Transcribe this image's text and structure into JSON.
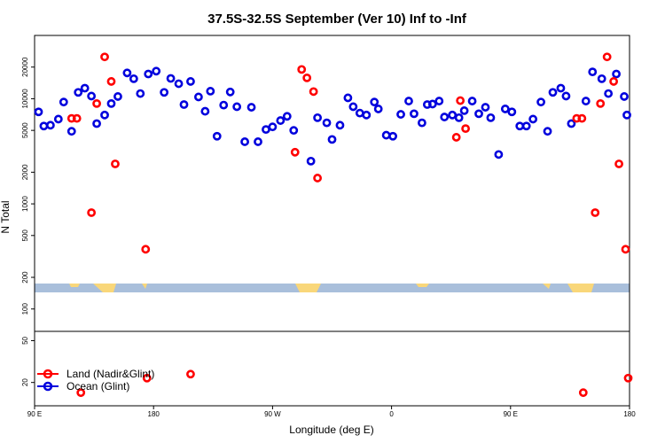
{
  "chart_data": {
    "type": "scatter",
    "title": "37.5S-32.5S September (Ver 10)   Inf to -Inf",
    "xlabel": "Longitude (deg E)",
    "ylabel": "N Total",
    "xlim": [
      90,
      540
    ],
    "ylim": [
      12,
      40000
    ],
    "y_scale": "log",
    "x_ticks": [
      {
        "value": 90,
        "label": "90 E"
      },
      {
        "value": 180,
        "label": "180"
      },
      {
        "value": 270,
        "label": "90 W"
      },
      {
        "value": 360,
        "label": "0"
      },
      {
        "value": 450,
        "label": "90 E"
      },
      {
        "value": 540,
        "label": "180"
      }
    ],
    "y_ticks": [
      20,
      50,
      100,
      200,
      500,
      1000,
      2000,
      5000,
      10000,
      20000
    ],
    "legend_position": "bottom-left",
    "colors": {
      "land": "#ff0000",
      "ocean": "#0000dd",
      "map_water": "#a9bfdb",
      "map_land": "#f9d77a"
    },
    "series": [
      {
        "name": "Land (Nadir&Glint)",
        "color": "#ff0000",
        "points": [
          [
            118,
            6500
          ],
          [
            122,
            6500
          ],
          [
            133,
            825
          ],
          [
            137,
            9000
          ],
          [
            143,
            25000
          ],
          [
            148,
            14600
          ],
          [
            151,
            2400
          ],
          [
            174,
            370
          ],
          [
            175,
            22
          ],
          [
            287,
            3100
          ],
          [
            292,
            19000
          ],
          [
            296,
            15800
          ],
          [
            301,
            11700
          ],
          [
            304,
            1760
          ],
          [
            409,
            4300
          ],
          [
            412,
            9600
          ],
          [
            416,
            5200
          ],
          [
            208,
            24
          ],
          [
            500,
            6500
          ],
          [
            504,
            6500
          ],
          [
            514,
            825
          ],
          [
            518,
            9000
          ],
          [
            523,
            25000
          ],
          [
            528,
            14600
          ],
          [
            532,
            2400
          ],
          [
            537,
            370
          ],
          [
            539,
            22
          ],
          [
            125,
            16
          ],
          [
            505,
            16
          ]
        ]
      },
      {
        "name": "Ocean (Glint)",
        "color": "#0000dd",
        "points": [
          [
            93,
            7500
          ],
          [
            97,
            5500
          ],
          [
            102,
            5600
          ],
          [
            108,
            6400
          ],
          [
            112,
            9300
          ],
          [
            118,
            4900
          ],
          [
            123,
            11500
          ],
          [
            128,
            12600
          ],
          [
            133,
            10600
          ],
          [
            137,
            5800
          ],
          [
            143,
            7000
          ],
          [
            148,
            9000
          ],
          [
            153,
            10500
          ],
          [
            160,
            17600
          ],
          [
            165,
            15500
          ],
          [
            170,
            11200
          ],
          [
            176,
            17200
          ],
          [
            182,
            18300
          ],
          [
            188,
            11500
          ],
          [
            193,
            15600
          ],
          [
            199,
            13900
          ],
          [
            203,
            8800
          ],
          [
            208,
            14600
          ],
          [
            214,
            10400
          ],
          [
            219,
            7600
          ],
          [
            223,
            11800
          ],
          [
            228,
            4400
          ],
          [
            233,
            8700
          ],
          [
            238,
            11600
          ],
          [
            243,
            8400
          ],
          [
            249,
            3900
          ],
          [
            254,
            8300
          ],
          [
            259,
            3900
          ],
          [
            265,
            5100
          ],
          [
            270,
            5400
          ],
          [
            276,
            6200
          ],
          [
            281,
            6800
          ],
          [
            286,
            5000
          ],
          [
            299,
            2550
          ],
          [
            304,
            6600
          ],
          [
            311,
            5900
          ],
          [
            315,
            4100
          ],
          [
            321,
            5600
          ],
          [
            327,
            10200
          ],
          [
            331,
            8400
          ],
          [
            336,
            7300
          ],
          [
            341,
            7000
          ],
          [
            347,
            9300
          ],
          [
            350,
            8000
          ],
          [
            356,
            4500
          ],
          [
            361,
            4400
          ],
          [
            367,
            7100
          ],
          [
            373,
            9500
          ],
          [
            377,
            7200
          ],
          [
            383,
            5900
          ],
          [
            387,
            8800
          ],
          [
            391,
            8900
          ],
          [
            396,
            9500
          ],
          [
            400,
            6700
          ],
          [
            406,
            7000
          ],
          [
            411,
            6600
          ],
          [
            415,
            7700
          ],
          [
            421,
            9500
          ],
          [
            426,
            7200
          ],
          [
            431,
            8300
          ],
          [
            435,
            6600
          ],
          [
            441,
            2950
          ],
          [
            446,
            8000
          ],
          [
            451,
            7500
          ],
          [
            457,
            5500
          ],
          [
            462,
            5500
          ],
          [
            467,
            6400
          ],
          [
            473,
            9300
          ],
          [
            478,
            4900
          ],
          [
            482,
            11500
          ],
          [
            488,
            12600
          ],
          [
            492,
            10600
          ],
          [
            496,
            5800
          ],
          [
            507,
            9500
          ],
          [
            512,
            18000
          ],
          [
            519,
            15500
          ],
          [
            524,
            11200
          ],
          [
            530,
            17200
          ],
          [
            536,
            10500
          ],
          [
            538,
            7000
          ]
        ]
      }
    ]
  }
}
